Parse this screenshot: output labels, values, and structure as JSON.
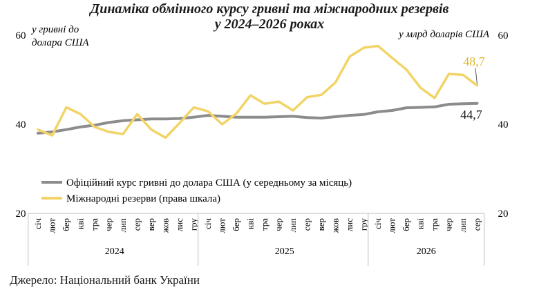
{
  "title": {
    "line1": "Динаміка обмінного курсу гривні та міжнародних резервів",
    "line2": "у 2024–2026 роках"
  },
  "source": "Джерело: Національний банк України",
  "colors": {
    "rate": "#8c8c8c",
    "reserves": "#f2d466",
    "reserves_label": "#e0b830",
    "axis": "#bfbfbf"
  },
  "chart_data": {
    "type": "line",
    "left_unit": [
      "у гривні до",
      "долара США"
    ],
    "right_unit": "у млрд доларів США",
    "y_left": {
      "ticks": [
        20,
        40,
        60
      ],
      "ylim": [
        20,
        60
      ]
    },
    "y_right": {
      "ticks": [
        20,
        40,
        60
      ],
      "ylim": [
        20,
        60
      ]
    },
    "x": [
      "січ",
      "лют",
      "бер",
      "кві",
      "тра",
      "чер",
      "лип",
      "сер",
      "вер",
      "жов",
      "лис",
      "гру",
      "січ",
      "лют",
      "бер",
      "кві",
      "тра",
      "чер",
      "лип",
      "сер",
      "вер",
      "жов",
      "лис",
      "гру",
      "січ",
      "лют",
      "бер",
      "кві",
      "тра",
      "чер",
      "лип",
      "сер"
    ],
    "years": [
      {
        "label": "2024",
        "start": 0,
        "end": 11
      },
      {
        "label": "2025",
        "start": 12,
        "end": 23
      },
      {
        "label": "2026",
        "start": 24,
        "end": 31
      }
    ],
    "series": [
      {
        "name": "Офіційний курс гривні до долара США (у середньому за місяць)",
        "axis": "left",
        "values": [
          38.0,
          38.3,
          38.8,
          39.4,
          39.8,
          40.4,
          40.8,
          41.0,
          41.2,
          41.2,
          41.3,
          41.6,
          42.0,
          41.8,
          41.6,
          41.6,
          41.6,
          41.7,
          41.8,
          41.5,
          41.4,
          41.7,
          42.0,
          42.2,
          42.8,
          43.1,
          43.7,
          43.8,
          43.9,
          44.5,
          44.6,
          44.7
        ]
      },
      {
        "name": "Міжнародні резерви (права шкала)",
        "axis": "right",
        "values": [
          38.8,
          37.5,
          43.8,
          42.3,
          39.4,
          38.3,
          37.8,
          42.3,
          38.8,
          37.0,
          40.3,
          43.8,
          42.9,
          40.0,
          42.4,
          46.5,
          44.6,
          45.1,
          43.1,
          46.1,
          46.6,
          49.4,
          55.2,
          57.2,
          57.6,
          54.9,
          52.3,
          48.2,
          45.9,
          51.3,
          51.1,
          48.7
        ]
      }
    ],
    "data_labels": [
      {
        "series": 1,
        "index": 31,
        "text": "48,7"
      },
      {
        "series": 0,
        "index": 31,
        "text": "44,7"
      }
    ]
  }
}
